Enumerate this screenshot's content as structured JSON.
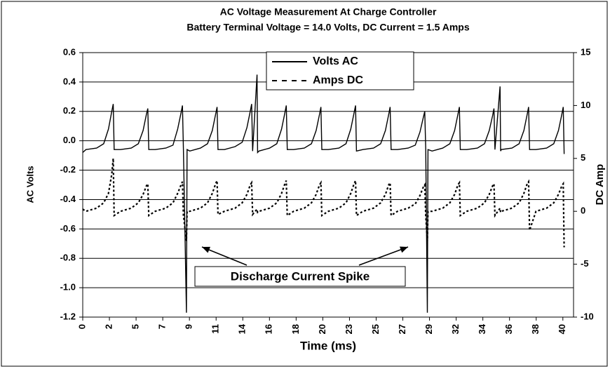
{
  "chart_data": {
    "type": "line",
    "title": "AC Voltage Measurement At Charge Controller",
    "subtitle": "Battery Terminal Voltage = 14.0 Volts, DC Current = 1.5 Amps",
    "xlabel": "Time (ms)",
    "ylabel": "AC Volts",
    "y2label": "DC Amp",
    "annotation": "Discharge Current Spike",
    "grid": true,
    "legend": "top",
    "xlim": [
      0,
      41.4
    ],
    "ylim": [
      -1.2,
      0.6
    ],
    "y2lim": [
      -10,
      15
    ],
    "xticks": [
      0,
      {
        "value": 2.25,
        "label": "2"
      },
      {
        "value": 4.5,
        "label": "5"
      },
      {
        "value": 6.75,
        "label": "7"
      },
      9,
      {
        "value": 11.25,
        "label": "11"
      },
      {
        "value": 13.5,
        "label": "14"
      },
      {
        "value": 15.75,
        "label": "16"
      },
      18,
      {
        "value": 20.25,
        "label": "20"
      },
      {
        "value": 22.5,
        "label": "23"
      },
      {
        "value": 24.75,
        "label": "25"
      },
      27,
      {
        "value": 29.25,
        "label": "29"
      },
      {
        "value": 31.5,
        "label": "32"
      },
      {
        "value": 33.75,
        "label": "34"
      },
      36,
      {
        "value": 38.25,
        "label": "38"
      },
      {
        "value": 40.5,
        "label": "40"
      }
    ],
    "yticks": [
      0.6,
      0.4,
      0.2,
      {
        "value": 0,
        "label": "0.0"
      },
      -0.2,
      -0.4,
      -0.6,
      -0.8,
      {
        "value": -1,
        "label": "-1.0"
      },
      -1.2
    ],
    "y2ticks": [
      15,
      10,
      5,
      0,
      -5,
      -10
    ],
    "series": [
      {
        "name": "Volts AC",
        "color": "#000000",
        "dash": "solid",
        "axis": "y",
        "x": [
          0,
          0.27,
          1.17,
          1.77,
          2.17,
          2.45,
          2.57,
          2.65,
          3.19,
          4.09,
          4.69,
          5.09,
          5.37,
          5.49,
          5.57,
          6.11,
          7.01,
          7.61,
          8.01,
          8.29,
          8.41,
          8.49,
          8.75,
          8.8,
          9.03,
          9.93,
          10.53,
          10.93,
          11.21,
          11.33,
          11.41,
          11.95,
          12.85,
          13.45,
          13.85,
          14.13,
          14.25,
          14.33,
          14.7,
          14.75,
          14.87,
          15.77,
          16.37,
          16.77,
          17.05,
          17.17,
          17.25,
          17.79,
          18.69,
          19.29,
          19.69,
          19.97,
          20.09,
          20.17,
          20.71,
          21.61,
          22.21,
          22.61,
          22.89,
          23.01,
          23.09,
          23.63,
          24.53,
          25.13,
          25.53,
          25.81,
          25.93,
          26.01,
          26.55,
          27.45,
          28.05,
          28.45,
          28.73,
          28.85,
          28.93,
          29.07,
          29.12,
          29.47,
          30.37,
          30.97,
          31.37,
          31.65,
          31.77,
          31.85,
          32.39,
          33.29,
          33.89,
          34.29,
          34.57,
          34.69,
          34.77,
          35.2,
          35.25,
          35.31,
          36.21,
          36.81,
          37.21,
          37.49,
          37.61,
          37.69,
          38.23,
          39.13,
          39.73,
          40.13,
          40.41,
          40.53,
          40.61
        ],
        "values": [
          -0.08,
          -0.06,
          -0.05,
          -0.02,
          0.08,
          0.2,
          0.25,
          -0.06,
          -0.06,
          -0.05,
          -0.02,
          0.07,
          0.18,
          0.22,
          -0.06,
          -0.06,
          -0.05,
          -0.03,
          0.08,
          0.19,
          0.24,
          -0.06,
          -1.17,
          -0.06,
          -0.07,
          -0.05,
          -0.02,
          0.07,
          0.18,
          0.23,
          -0.06,
          -0.06,
          -0.04,
          -0.01,
          0.09,
          0.2,
          0.25,
          -0.07,
          0.45,
          -0.08,
          -0.07,
          -0.05,
          -0.02,
          0.08,
          0.19,
          0.24,
          -0.06,
          -0.06,
          -0.05,
          -0.02,
          0.07,
          0.18,
          0.23,
          -0.06,
          -0.06,
          -0.05,
          -0.02,
          0.08,
          0.19,
          0.24,
          -0.07,
          -0.06,
          -0.05,
          -0.02,
          0.07,
          0.18,
          0.23,
          -0.06,
          -0.06,
          -0.05,
          -0.03,
          0.06,
          0.16,
          0.2,
          -0.06,
          -1.17,
          -0.06,
          -0.07,
          -0.05,
          -0.02,
          0.07,
          0.18,
          0.23,
          -0.06,
          -0.06,
          -0.05,
          -0.02,
          0.07,
          0.17,
          0.22,
          -0.06,
          0.37,
          -0.07,
          -0.06,
          -0.05,
          -0.02,
          0.07,
          0.18,
          0.23,
          -0.06,
          -0.06,
          -0.05,
          -0.02,
          0.07,
          0.18,
          0.23,
          -0.09
        ]
      },
      {
        "name": "Amps DC",
        "color": "#000000",
        "dash": "dotted",
        "axis": "y2",
        "x": [
          0,
          0.27,
          1.17,
          1.77,
          2.17,
          2.45,
          2.57,
          2.65,
          3.19,
          4.09,
          4.69,
          5.09,
          5.37,
          5.49,
          5.57,
          6.11,
          7.01,
          7.61,
          8.01,
          8.29,
          8.41,
          8.49,
          8.75,
          8.8,
          9.03,
          9.93,
          10.53,
          10.93,
          11.21,
          11.33,
          11.41,
          11.95,
          12.85,
          13.45,
          13.85,
          14.13,
          14.25,
          14.33,
          14.7,
          14.75,
          14.87,
          15.77,
          16.37,
          16.77,
          17.05,
          17.17,
          17.25,
          17.79,
          18.69,
          19.29,
          19.69,
          19.97,
          20.09,
          20.17,
          20.71,
          21.61,
          22.21,
          22.61,
          22.89,
          23.01,
          23.09,
          23.63,
          24.53,
          25.13,
          25.53,
          25.81,
          25.93,
          26.01,
          26.55,
          27.45,
          28.05,
          28.45,
          28.73,
          28.85,
          28.93,
          29.07,
          29.12,
          29.47,
          30.37,
          30.97,
          31.37,
          31.65,
          31.77,
          31.85,
          32.39,
          33.29,
          33.89,
          34.29,
          34.57,
          34.69,
          34.77,
          35.2,
          35.25,
          35.31,
          36.21,
          36.81,
          37.21,
          37.49,
          37.61,
          37.69,
          38.23,
          39.13,
          39.73,
          40.13,
          40.41,
          40.53,
          40.61
        ],
        "values": [
          0.2,
          0,
          0.3,
          0.8,
          1.7,
          3.5,
          5,
          -0.4,
          0,
          0.3,
          0.8,
          1.6,
          2.4,
          2.6,
          -0.4,
          0,
          0.3,
          0.8,
          1.7,
          2.5,
          2.8,
          -0.4,
          -2.8,
          0,
          0,
          0.3,
          0.8,
          1.7,
          2.6,
          2.9,
          -0.3,
          0,
          0.3,
          0.8,
          1.6,
          2.5,
          2.7,
          -0.3,
          0.2,
          -0.1,
          0,
          0.3,
          0.8,
          1.7,
          2.6,
          2.9,
          -0.4,
          0,
          0.3,
          0.8,
          1.6,
          2.5,
          2.7,
          -0.4,
          0,
          0.3,
          0.8,
          1.7,
          2.6,
          2.9,
          -0.4,
          0,
          0.3,
          0.8,
          1.6,
          2.5,
          2.7,
          -0.4,
          0,
          0.3,
          0.7,
          1.5,
          2.3,
          2.5,
          -0.4,
          -2.8,
          0,
          0,
          0.3,
          0.8,
          1.6,
          2.5,
          2.7,
          -0.4,
          0,
          0.3,
          0.8,
          1.6,
          2.4,
          2.6,
          -0.4,
          0.3,
          -0.1,
          0,
          0.3,
          0.8,
          1.7,
          2.6,
          2.8,
          -1.8,
          0,
          0.3,
          0.8,
          1.6,
          2.4,
          2.6,
          -3.4
        ]
      }
    ]
  }
}
